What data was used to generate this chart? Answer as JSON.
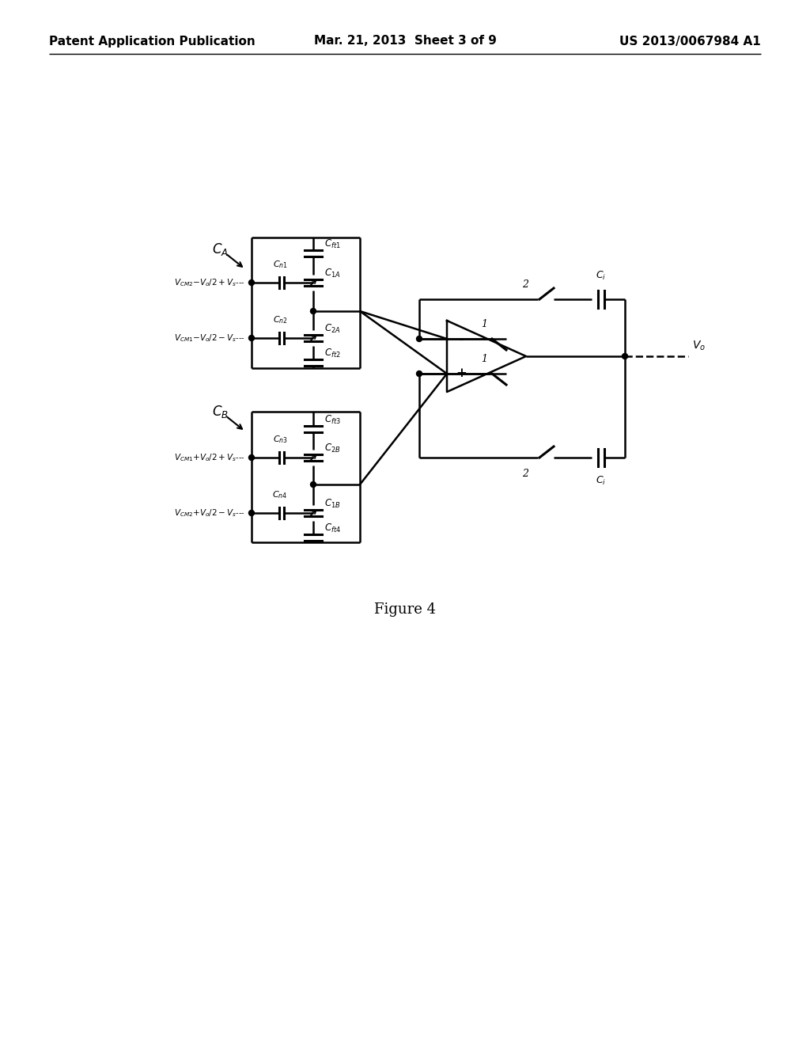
{
  "background_color": "#ffffff",
  "header_left": "Patent Application Publication",
  "header_center": "Mar. 21, 2013  Sheet 3 of 9",
  "header_right": "US 2013/0067984 A1",
  "figure_label": "Figure 4",
  "header_fontsize": 10,
  "figure_fontsize": 12
}
